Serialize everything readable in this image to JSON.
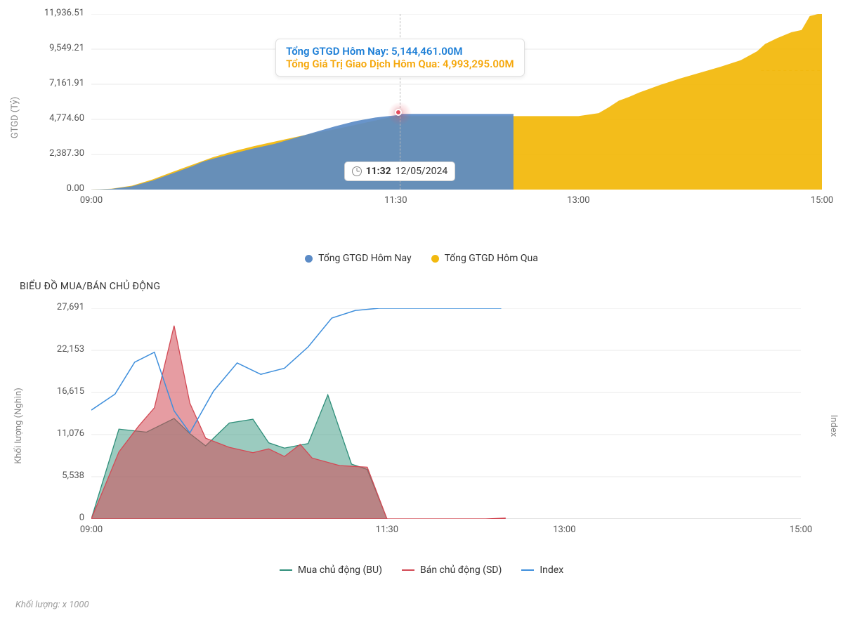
{
  "chart1": {
    "type": "area",
    "y_axis_label": "GTGD (Tỷ)",
    "y_ticks": [
      "0.00",
      "2,387.30",
      "4,774.60",
      "7,161.91",
      "9,549.21",
      "11,936.51"
    ],
    "y_min": 0,
    "y_max": 11936.51,
    "x_ticks": [
      {
        "label": "09:00",
        "t": 0
      },
      {
        "label": "11:30",
        "t": 150
      },
      {
        "label": "13:00",
        "t": 240
      },
      {
        "label": "15:00",
        "t": 360
      }
    ],
    "x_min": 0,
    "x_max": 360,
    "tooltip": {
      "line1_label": "Tổng GTGD Hôm Nay: ",
      "line1_value": "5,144,461.00M",
      "line1_color": "#1c7ed6",
      "line2_label": "Tổng Giá Trị Giao Dịch Hôm Qua: ",
      "line2_value": "4,993,295.00M",
      "line2_color": "#f5a70a"
    },
    "time_label": {
      "time": "11:32",
      "date": "12/05/2024",
      "t": 152
    },
    "hover_point": {
      "t": 152,
      "v": 5144
    },
    "series_today": {
      "color": "#5b8bc6",
      "points": [
        [
          0,
          0
        ],
        [
          10,
          50
        ],
        [
          20,
          220
        ],
        [
          30,
          600
        ],
        [
          40,
          1100
        ],
        [
          50,
          1600
        ],
        [
          55,
          1900
        ],
        [
          60,
          2100
        ],
        [
          70,
          2450
        ],
        [
          80,
          2800
        ],
        [
          90,
          3100
        ],
        [
          100,
          3500
        ],
        [
          110,
          3900
        ],
        [
          120,
          4300
        ],
        [
          130,
          4650
        ],
        [
          140,
          4900
        ],
        [
          150,
          5050
        ],
        [
          152,
          5144
        ],
        [
          160,
          5144
        ],
        [
          175,
          5144
        ],
        [
          200,
          5144
        ],
        [
          208,
          5144
        ]
      ]
    },
    "series_yesterday": {
      "color": "#f2b90f",
      "points": [
        [
          0,
          0
        ],
        [
          10,
          60
        ],
        [
          20,
          260
        ],
        [
          30,
          680
        ],
        [
          40,
          1200
        ],
        [
          50,
          1700
        ],
        [
          55,
          1950
        ],
        [
          60,
          2200
        ],
        [
          70,
          2600
        ],
        [
          80,
          2950
        ],
        [
          90,
          3250
        ],
        [
          100,
          3550
        ],
        [
          110,
          3850
        ],
        [
          120,
          4100
        ],
        [
          130,
          4400
        ],
        [
          140,
          4700
        ],
        [
          150,
          4993
        ],
        [
          160,
          4993
        ],
        [
          175,
          4993
        ],
        [
          200,
          4993
        ],
        [
          208,
          4993
        ],
        [
          240,
          4993
        ],
        [
          250,
          5200
        ],
        [
          255,
          5600
        ],
        [
          260,
          6050
        ],
        [
          265,
          6300
        ],
        [
          270,
          6600
        ],
        [
          280,
          7100
        ],
        [
          290,
          7550
        ],
        [
          300,
          7950
        ],
        [
          310,
          8350
        ],
        [
          320,
          8800
        ],
        [
          328,
          9400
        ],
        [
          332,
          9900
        ],
        [
          338,
          10300
        ],
        [
          345,
          10700
        ],
        [
          350,
          10850
        ],
        [
          354,
          11800
        ],
        [
          358,
          11937
        ],
        [
          360,
          11937
        ]
      ]
    },
    "ref_line_y": 8100,
    "ref_line_x_from": 330,
    "ref_line_color": "#f2b90f",
    "legend": [
      {
        "label": "Tổng GTGD Hôm Nay",
        "color": "#5b8bc6",
        "kind": "dot"
      },
      {
        "label": "Tổng GTGD Hôm Qua",
        "color": "#f2b90f",
        "kind": "dot"
      }
    ],
    "grid_color": "#e9e9e9",
    "bg": "#ffffff"
  },
  "section2_title": "BIỂU ĐỒ MUA/BÁN CHỦ ĐỘNG",
  "chart2": {
    "type": "area-line",
    "y_axis_label_left": "Khối lượng (Nghìn)",
    "y_axis_label_right": "Index",
    "y_ticks": [
      "0",
      "5,538",
      "11,076",
      "16,615",
      "22,153",
      "27,691"
    ],
    "y_min": 0,
    "y_max": 27691,
    "x_ticks": [
      {
        "label": "09:00",
        "t": 0
      },
      {
        "label": "11:30",
        "t": 150
      },
      {
        "label": "13:00",
        "t": 240
      },
      {
        "label": "15:00",
        "t": 360
      }
    ],
    "x_min": 0,
    "x_max": 360,
    "series_bu": {
      "label": "Mua chủ động (BU)",
      "stroke": "#2f8f7a",
      "fill": "rgba(72,160,138,0.55)",
      "points": [
        [
          0,
          0
        ],
        [
          14,
          11800
        ],
        [
          28,
          11400
        ],
        [
          42,
          13200
        ],
        [
          50,
          11200
        ],
        [
          58,
          9600
        ],
        [
          70,
          12600
        ],
        [
          82,
          13100
        ],
        [
          90,
          10000
        ],
        [
          98,
          9300
        ],
        [
          110,
          9900
        ],
        [
          120,
          16300
        ],
        [
          132,
          7200
        ],
        [
          140,
          6500
        ],
        [
          150,
          0
        ]
      ]
    },
    "series_sd": {
      "label": "Bán chủ động (SD)",
      "stroke": "#d24a55",
      "fill": "rgba(210,74,85,0.55)",
      "points": [
        [
          0,
          0
        ],
        [
          14,
          8800
        ],
        [
          24,
          12200
        ],
        [
          32,
          14600
        ],
        [
          42,
          25400
        ],
        [
          50,
          15200
        ],
        [
          58,
          10600
        ],
        [
          70,
          9400
        ],
        [
          82,
          8700
        ],
        [
          90,
          9200
        ],
        [
          98,
          8200
        ],
        [
          106,
          9800
        ],
        [
          112,
          8000
        ],
        [
          126,
          7000
        ],
        [
          140,
          6800
        ],
        [
          150,
          0
        ],
        [
          200,
          0
        ],
        [
          210,
          100
        ]
      ]
    },
    "series_index": {
      "label": "Index",
      "stroke": "#3f8fdc",
      "points": [
        [
          0,
          14300
        ],
        [
          12,
          16400
        ],
        [
          22,
          20600
        ],
        [
          32,
          21900
        ],
        [
          42,
          14200
        ],
        [
          50,
          11300
        ],
        [
          62,
          16800
        ],
        [
          74,
          20500
        ],
        [
          86,
          19000
        ],
        [
          98,
          19800
        ],
        [
          110,
          22600
        ],
        [
          122,
          26400
        ],
        [
          134,
          27400
        ],
        [
          146,
          27691
        ],
        [
          158,
          27691
        ],
        [
          180,
          27691
        ],
        [
          208,
          27691
        ]
      ]
    },
    "legend": [
      {
        "label": "Mua chủ động (BU)",
        "color": "#2f8f7a",
        "kind": "line"
      },
      {
        "label": "Bán chủ động (SD)",
        "color": "#d24a55",
        "kind": "line"
      },
      {
        "label": "Index",
        "color": "#3f8fdc",
        "kind": "line"
      }
    ],
    "grid_color": "#e9e9e9",
    "bg": "#ffffff"
  },
  "footnote": "Khối lượng: x 1000"
}
